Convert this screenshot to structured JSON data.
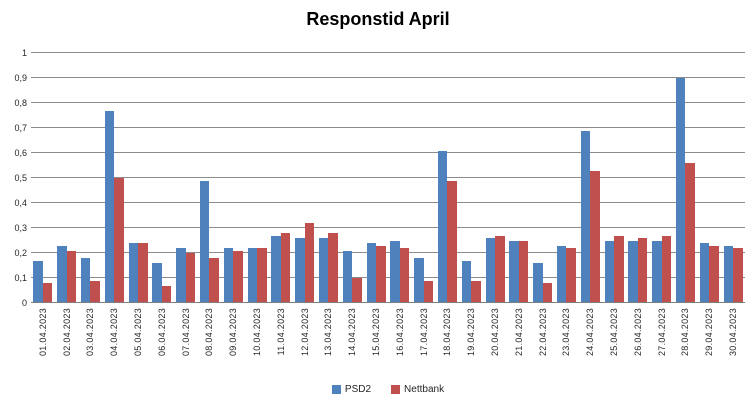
{
  "chart_data": {
    "type": "bar",
    "title": "Responstid April",
    "categories": [
      "01.04.2023",
      "02.04.2023",
      "03.04.2023",
      "04.04.2023",
      "05.04.2023",
      "06.04.2023",
      "07.04.2023",
      "08.04.2023",
      "09.04.2023",
      "10.04.2023",
      "11.04.2023",
      "12.04.2023",
      "13.04.2023",
      "14.04.2023",
      "15.04.2023",
      "16.04.2023",
      "17.04.2023",
      "18.04.2023",
      "19.04.2023",
      "20.04.2023",
      "21.04.2023",
      "22.04.2023",
      "23.04.2023",
      "24.04.2023",
      "25.04.2023",
      "26.04.2023",
      "27.04.2023",
      "28.04.2023",
      "29.04.2023",
      "30.04.2023"
    ],
    "series": [
      {
        "name": "PSD2",
        "color": "#4F81BD",
        "values": [
          0.17,
          0.23,
          0.18,
          0.77,
          0.24,
          0.16,
          0.22,
          0.49,
          0.22,
          0.22,
          0.27,
          0.26,
          0.26,
          0.21,
          0.24,
          0.25,
          0.18,
          0.61,
          0.17,
          0.26,
          0.25,
          0.16,
          0.23,
          0.69,
          0.25,
          0.25,
          0.25,
          0.9,
          0.24,
          0.23
        ]
      },
      {
        "name": "Nettbank",
        "color": "#C0504D",
        "values": [
          0.08,
          0.21,
          0.09,
          0.5,
          0.24,
          0.07,
          0.2,
          0.18,
          0.21,
          0.22,
          0.28,
          0.32,
          0.28,
          0.1,
          0.23,
          0.22,
          0.09,
          0.49,
          0.09,
          0.27,
          0.25,
          0.08,
          0.22,
          0.53,
          0.27,
          0.26,
          0.27,
          0.56,
          0.23,
          0.22
        ]
      }
    ],
    "y_axis": {
      "min": 0,
      "max": 1,
      "step": 0.1,
      "tick_labels": [
        "0",
        "0,1",
        "0,2",
        "0,3",
        "0,4",
        "0,5",
        "0,6",
        "0,7",
        "0,8",
        "0,9",
        "1"
      ]
    },
    "grid": true,
    "legend_position": "bottom",
    "colors": {
      "gridline": "#8C8C8C",
      "axis_line": "#7F7F7F",
      "text": "#262626",
      "background": "#FFFFFF"
    }
  }
}
